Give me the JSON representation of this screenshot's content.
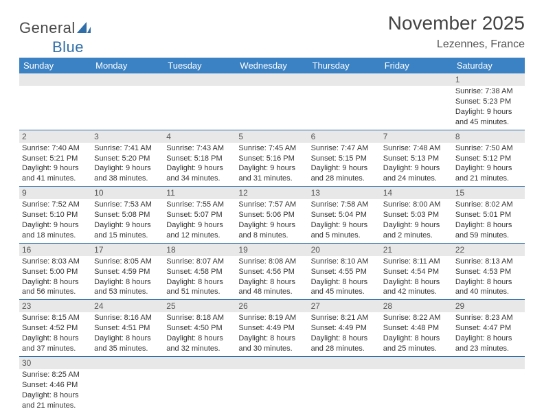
{
  "logo": {
    "text1": "General",
    "text2": "Blue",
    "shape_color": "#2f6ea8"
  },
  "title": "November 2025",
  "location": "Lezennes, France",
  "colors": {
    "header_bg": "#3b82c4",
    "header_text": "#ffffff",
    "row_divider": "#2f6ea8",
    "daynum_bg": "#e8e8e8",
    "text": "#333333"
  },
  "day_headers": [
    "Sunday",
    "Monday",
    "Tuesday",
    "Wednesday",
    "Thursday",
    "Friday",
    "Saturday"
  ],
  "weeks": [
    [
      {
        "n": "",
        "sr": "",
        "ss": "",
        "dl": ""
      },
      {
        "n": "",
        "sr": "",
        "ss": "",
        "dl": ""
      },
      {
        "n": "",
        "sr": "",
        "ss": "",
        "dl": ""
      },
      {
        "n": "",
        "sr": "",
        "ss": "",
        "dl": ""
      },
      {
        "n": "",
        "sr": "",
        "ss": "",
        "dl": ""
      },
      {
        "n": "",
        "sr": "",
        "ss": "",
        "dl": ""
      },
      {
        "n": "1",
        "sr": "Sunrise: 7:38 AM",
        "ss": "Sunset: 5:23 PM",
        "dl": "Daylight: 9 hours and 45 minutes."
      }
    ],
    [
      {
        "n": "2",
        "sr": "Sunrise: 7:40 AM",
        "ss": "Sunset: 5:21 PM",
        "dl": "Daylight: 9 hours and 41 minutes."
      },
      {
        "n": "3",
        "sr": "Sunrise: 7:41 AM",
        "ss": "Sunset: 5:20 PM",
        "dl": "Daylight: 9 hours and 38 minutes."
      },
      {
        "n": "4",
        "sr": "Sunrise: 7:43 AM",
        "ss": "Sunset: 5:18 PM",
        "dl": "Daylight: 9 hours and 34 minutes."
      },
      {
        "n": "5",
        "sr": "Sunrise: 7:45 AM",
        "ss": "Sunset: 5:16 PM",
        "dl": "Daylight: 9 hours and 31 minutes."
      },
      {
        "n": "6",
        "sr": "Sunrise: 7:47 AM",
        "ss": "Sunset: 5:15 PM",
        "dl": "Daylight: 9 hours and 28 minutes."
      },
      {
        "n": "7",
        "sr": "Sunrise: 7:48 AM",
        "ss": "Sunset: 5:13 PM",
        "dl": "Daylight: 9 hours and 24 minutes."
      },
      {
        "n": "8",
        "sr": "Sunrise: 7:50 AM",
        "ss": "Sunset: 5:12 PM",
        "dl": "Daylight: 9 hours and 21 minutes."
      }
    ],
    [
      {
        "n": "9",
        "sr": "Sunrise: 7:52 AM",
        "ss": "Sunset: 5:10 PM",
        "dl": "Daylight: 9 hours and 18 minutes."
      },
      {
        "n": "10",
        "sr": "Sunrise: 7:53 AM",
        "ss": "Sunset: 5:08 PM",
        "dl": "Daylight: 9 hours and 15 minutes."
      },
      {
        "n": "11",
        "sr": "Sunrise: 7:55 AM",
        "ss": "Sunset: 5:07 PM",
        "dl": "Daylight: 9 hours and 12 minutes."
      },
      {
        "n": "12",
        "sr": "Sunrise: 7:57 AM",
        "ss": "Sunset: 5:06 PM",
        "dl": "Daylight: 9 hours and 8 minutes."
      },
      {
        "n": "13",
        "sr": "Sunrise: 7:58 AM",
        "ss": "Sunset: 5:04 PM",
        "dl": "Daylight: 9 hours and 5 minutes."
      },
      {
        "n": "14",
        "sr": "Sunrise: 8:00 AM",
        "ss": "Sunset: 5:03 PM",
        "dl": "Daylight: 9 hours and 2 minutes."
      },
      {
        "n": "15",
        "sr": "Sunrise: 8:02 AM",
        "ss": "Sunset: 5:01 PM",
        "dl": "Daylight: 8 hours and 59 minutes."
      }
    ],
    [
      {
        "n": "16",
        "sr": "Sunrise: 8:03 AM",
        "ss": "Sunset: 5:00 PM",
        "dl": "Daylight: 8 hours and 56 minutes."
      },
      {
        "n": "17",
        "sr": "Sunrise: 8:05 AM",
        "ss": "Sunset: 4:59 PM",
        "dl": "Daylight: 8 hours and 53 minutes."
      },
      {
        "n": "18",
        "sr": "Sunrise: 8:07 AM",
        "ss": "Sunset: 4:58 PM",
        "dl": "Daylight: 8 hours and 51 minutes."
      },
      {
        "n": "19",
        "sr": "Sunrise: 8:08 AM",
        "ss": "Sunset: 4:56 PM",
        "dl": "Daylight: 8 hours and 48 minutes."
      },
      {
        "n": "20",
        "sr": "Sunrise: 8:10 AM",
        "ss": "Sunset: 4:55 PM",
        "dl": "Daylight: 8 hours and 45 minutes."
      },
      {
        "n": "21",
        "sr": "Sunrise: 8:11 AM",
        "ss": "Sunset: 4:54 PM",
        "dl": "Daylight: 8 hours and 42 minutes."
      },
      {
        "n": "22",
        "sr": "Sunrise: 8:13 AM",
        "ss": "Sunset: 4:53 PM",
        "dl": "Daylight: 8 hours and 40 minutes."
      }
    ],
    [
      {
        "n": "23",
        "sr": "Sunrise: 8:15 AM",
        "ss": "Sunset: 4:52 PM",
        "dl": "Daylight: 8 hours and 37 minutes."
      },
      {
        "n": "24",
        "sr": "Sunrise: 8:16 AM",
        "ss": "Sunset: 4:51 PM",
        "dl": "Daylight: 8 hours and 35 minutes."
      },
      {
        "n": "25",
        "sr": "Sunrise: 8:18 AM",
        "ss": "Sunset: 4:50 PM",
        "dl": "Daylight: 8 hours and 32 minutes."
      },
      {
        "n": "26",
        "sr": "Sunrise: 8:19 AM",
        "ss": "Sunset: 4:49 PM",
        "dl": "Daylight: 8 hours and 30 minutes."
      },
      {
        "n": "27",
        "sr": "Sunrise: 8:21 AM",
        "ss": "Sunset: 4:49 PM",
        "dl": "Daylight: 8 hours and 28 minutes."
      },
      {
        "n": "28",
        "sr": "Sunrise: 8:22 AM",
        "ss": "Sunset: 4:48 PM",
        "dl": "Daylight: 8 hours and 25 minutes."
      },
      {
        "n": "29",
        "sr": "Sunrise: 8:23 AM",
        "ss": "Sunset: 4:47 PM",
        "dl": "Daylight: 8 hours and 23 minutes."
      }
    ],
    [
      {
        "n": "30",
        "sr": "Sunrise: 8:25 AM",
        "ss": "Sunset: 4:46 PM",
        "dl": "Daylight: 8 hours and 21 minutes."
      },
      {
        "n": "",
        "sr": "",
        "ss": "",
        "dl": ""
      },
      {
        "n": "",
        "sr": "",
        "ss": "",
        "dl": ""
      },
      {
        "n": "",
        "sr": "",
        "ss": "",
        "dl": ""
      },
      {
        "n": "",
        "sr": "",
        "ss": "",
        "dl": ""
      },
      {
        "n": "",
        "sr": "",
        "ss": "",
        "dl": ""
      },
      {
        "n": "",
        "sr": "",
        "ss": "",
        "dl": ""
      }
    ]
  ]
}
